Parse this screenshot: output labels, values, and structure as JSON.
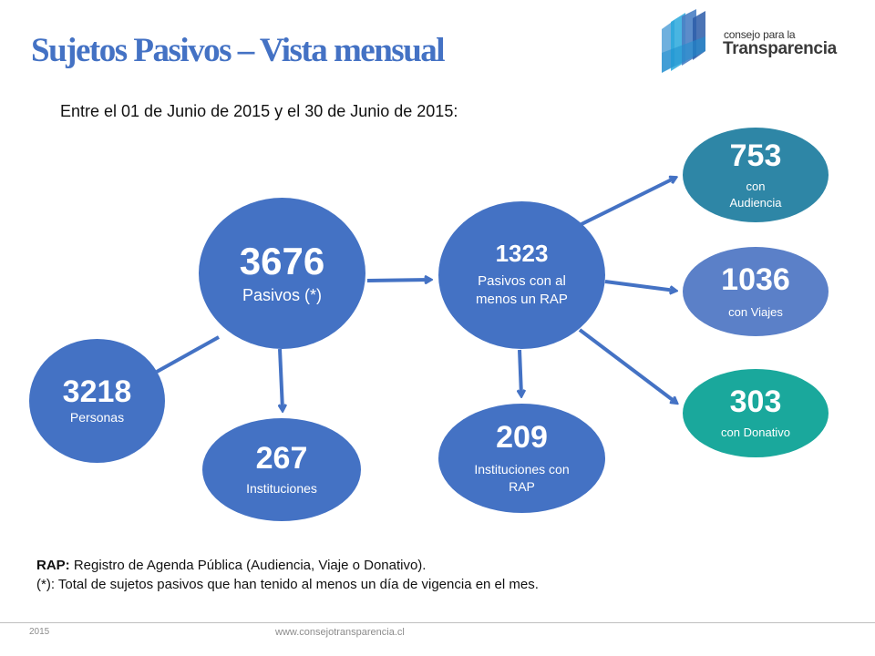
{
  "header": {
    "title": "Sujetos Pasivos – Vista mensual",
    "subtitle": "Entre el 01 de Junio de 2015 y el 30 de Junio de 2015:"
  },
  "logo": {
    "small_text": "consejo para la",
    "big_text": "Transparencia"
  },
  "nodes": {
    "total": {
      "value": "3676",
      "label": "Pasivos (*)",
      "color": "#4472c4"
    },
    "personas": {
      "value": "3218",
      "label": "Personas",
      "color": "#4472c4"
    },
    "instituciones": {
      "value": "267",
      "label": "Instituciones",
      "color": "#4472c4"
    },
    "con_rap": {
      "value": "1323",
      "label": "Pasivos con al menos un RAP",
      "color": "#4472c4"
    },
    "instituciones_rap": {
      "value": "209",
      "label": "Instituciones con RAP",
      "color": "#4472c4"
    },
    "audiencia": {
      "value": "753",
      "label": "con Audiencia",
      "color": "#2e86a6"
    },
    "viajes": {
      "value": "1036",
      "label": "con Viajes",
      "color": "#5b80c8"
    },
    "donativo": {
      "value": "303",
      "label": "con Donativo",
      "color": "#1aa89c"
    }
  },
  "notes": {
    "rap_term": "RAP:",
    "rap_def": " Registro de Agenda Pública (Audiencia, Viaje o Donativo).",
    "asterisk": "(*): Total de sujetos pasivos que han tenido al menos un día de vigencia en el mes."
  },
  "footer": {
    "year": "2015",
    "url": "www.consejotransparencia.cl"
  },
  "colors": {
    "title": "#4472c4",
    "arrow": "#4472c4",
    "logo_blue": "#4a7fc4",
    "logo_cyan": "#29a8dc"
  }
}
